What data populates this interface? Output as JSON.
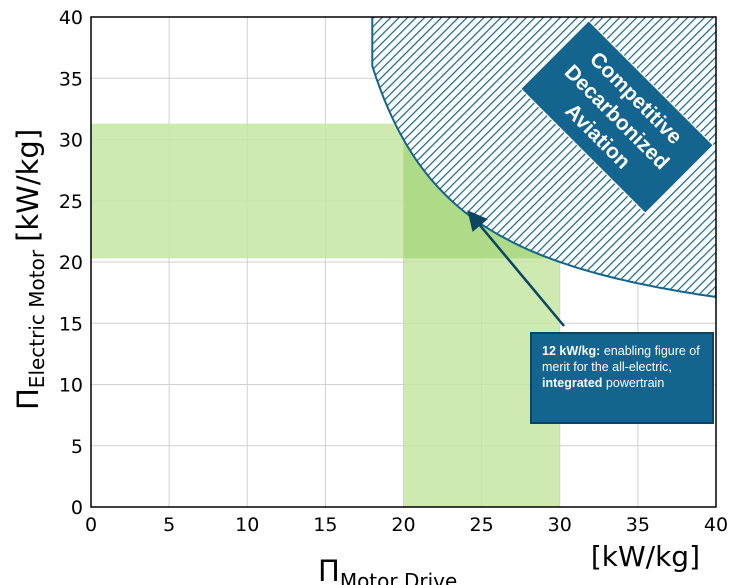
{
  "chart_data": {
    "type": "area",
    "xlim": [
      0,
      40
    ],
    "ylim": [
      0,
      40
    ],
    "xticks": [
      0,
      5,
      10,
      15,
      20,
      25,
      30,
      35,
      40
    ],
    "yticks": [
      0,
      5,
      10,
      15,
      20,
      25,
      30,
      35,
      40
    ],
    "grid": true,
    "xlabel": {
      "main": "Π",
      "sub": "Motor Drive"
    },
    "x_unit": "[kW/kg]",
    "ylabel": {
      "main": "Π",
      "sub": "Electric Motor",
      "unit": "[kW/kg]"
    },
    "bands": [
      {
        "axis": "x",
        "from": 20,
        "to": 30,
        "color": "#c6e6a3"
      },
      {
        "axis": "y",
        "from": 20.3,
        "to": 31.3,
        "color": "#c6e6a3"
      }
    ],
    "hatched_region": {
      "label": [
        "Competitive",
        "Decarbonized",
        "Aviation"
      ],
      "boundary_curve": "1/x + 1/y = 1/12",
      "figure_of_merit": 12,
      "fill_color": "#13648e"
    },
    "annotation": {
      "bold_lead": "12 kW/kg:",
      "text_1": " enabling figure of merit for the all-electric, ",
      "bold_mid": "integrated",
      "text_2": " powertrain",
      "arrow_to": [
        24.5,
        23.6
      ],
      "color": "#13648e"
    }
  }
}
